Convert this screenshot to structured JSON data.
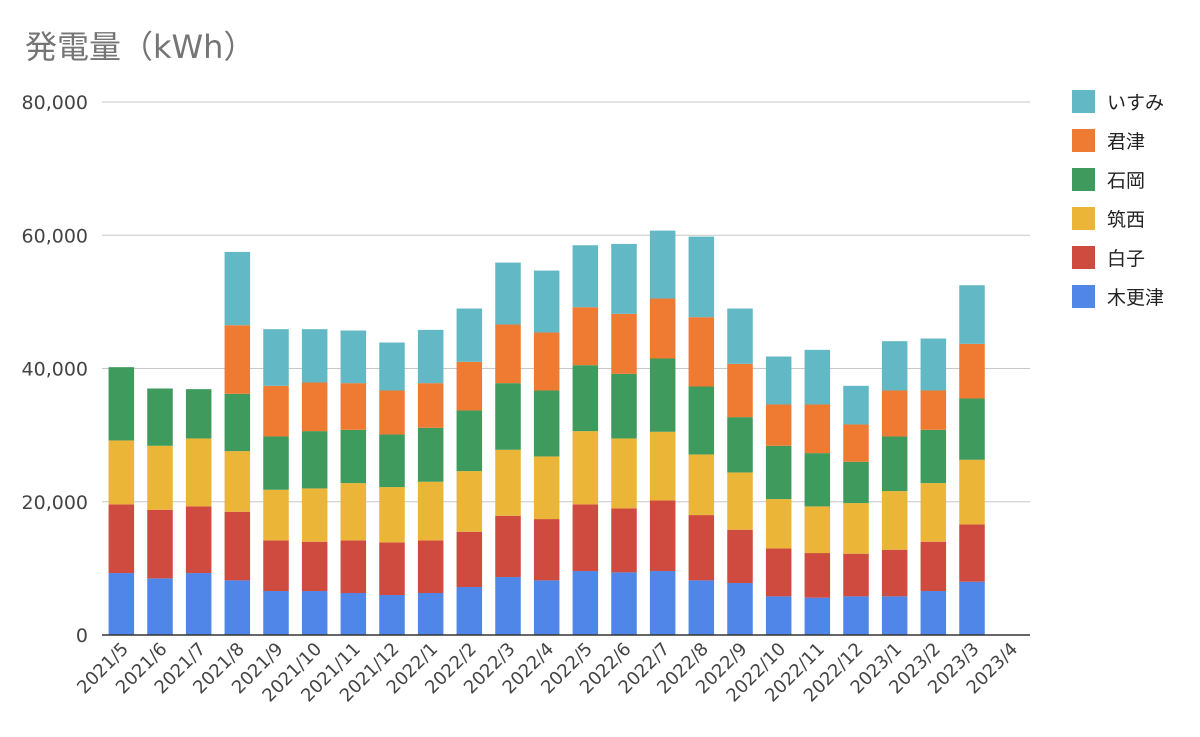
{
  "chart_data": {
    "type": "bar",
    "stacked": true,
    "title": "発電量（kWh）",
    "xlabel": "",
    "ylabel": "",
    "ylim": [
      0,
      80000
    ],
    "yticks": [
      "0",
      "20,000",
      "40,000",
      "60,000",
      "80,000"
    ],
    "grid": true,
    "legend_position": "right",
    "categories": [
      "2021/5",
      "2021/6",
      "2021/7",
      "2021/8",
      "2021/9",
      "2021/10",
      "2021/11",
      "2021/12",
      "2022/1",
      "2022/2",
      "2022/3",
      "2022/4",
      "2022/5",
      "2022/6",
      "2022/7",
      "2022/8",
      "2022/9",
      "2022/10",
      "2022/11",
      "2022/12",
      "2023/1",
      "2023/2",
      "2023/3",
      "2023/4"
    ],
    "series": [
      {
        "name": "木更津",
        "color": "#4f86e8",
        "values": [
          9300,
          8500,
          9300,
          8200,
          6600,
          6600,
          6300,
          6000,
          6300,
          7200,
          8700,
          8200,
          9600,
          9400,
          9600,
          8200,
          7800,
          5800,
          5600,
          5800,
          5800,
          6600,
          8000,
          0
        ]
      },
      {
        "name": "白子",
        "color": "#cf4b3f",
        "values": [
          10300,
          10300,
          10000,
          10300,
          7600,
          7400,
          7900,
          7900,
          7900,
          8300,
          9200,
          9200,
          10000,
          9600,
          10600,
          9800,
          8000,
          7200,
          6700,
          6400,
          7000,
          7400,
          8600,
          0
        ]
      },
      {
        "name": "筑西",
        "color": "#ebb538",
        "values": [
          9600,
          9600,
          10200,
          9100,
          7600,
          8000,
          8600,
          8300,
          8800,
          9100,
          9900,
          9400,
          11000,
          10500,
          10300,
          9100,
          8600,
          7400,
          7000,
          7600,
          8800,
          8800,
          9700,
          0
        ]
      },
      {
        "name": "石岡",
        "color": "#3f9a5e",
        "values": [
          11000,
          8600,
          7400,
          8600,
          8000,
          8600,
          8000,
          7900,
          8100,
          9100,
          10000,
          9900,
          9900,
          9700,
          11000,
          10200,
          8300,
          8000,
          8000,
          6200,
          8200,
          8000,
          9200,
          0
        ]
      },
      {
        "name": "君津",
        "color": "#ef7a31",
        "values": [
          0,
          0,
          0,
          10300,
          7600,
          7300,
          7000,
          6600,
          6700,
          7300,
          8800,
          8700,
          8700,
          9000,
          9000,
          10400,
          8000,
          6200,
          7300,
          5600,
          6900,
          5900,
          8200,
          0
        ]
      },
      {
        "name": "いすみ",
        "color": "#63b8c5",
        "values": [
          0,
          0,
          0,
          11000,
          8500,
          8000,
          7900,
          7200,
          8000,
          8000,
          9300,
          9300,
          9300,
          10500,
          10200,
          12100,
          8300,
          7200,
          8200,
          5800,
          7400,
          7800,
          8800,
          0
        ]
      }
    ]
  }
}
